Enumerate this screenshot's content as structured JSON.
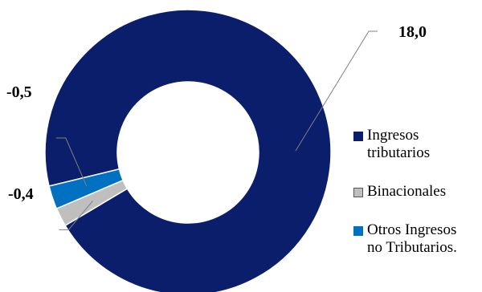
{
  "chart_data": {
    "type": "pie",
    "variant": "donut",
    "title": "",
    "slices": [
      {
        "label": "Ingresos\ntributarios",
        "value": 18.0,
        "value_label": "18,0",
        "color": "#0B1E6B"
      },
      {
        "label": "Binacionales",
        "value": -0.4,
        "value_label": "-0,4",
        "color": "#BFBFBF"
      },
      {
        "label": "Otros Ingresos\nno Tributarios.",
        "value": -0.5,
        "value_label": "-0,5",
        "color": "#0070C0"
      }
    ],
    "legend_position": "right"
  }
}
